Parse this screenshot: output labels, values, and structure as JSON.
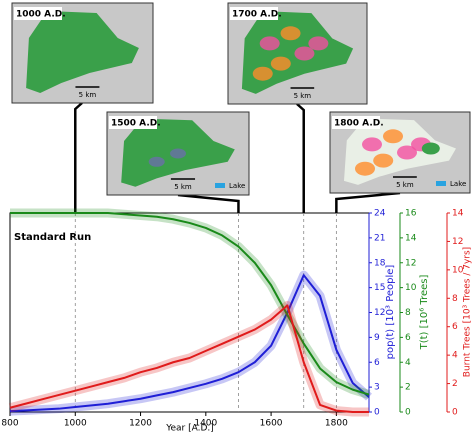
{
  "chart_data": {
    "type": "line",
    "title": "Standard Run",
    "xlabel": "Year [A.D.]",
    "ylabel": "pop(t) [10³ People]",
    "y2label": "T(t) [10⁶ Trees]",
    "y3label": "Burnt Trees [10³ Trees / 7yrs]",
    "xlim": [
      800,
      1900
    ],
    "xticks": [
      800,
      1000,
      1200,
      1400,
      1600,
      1800
    ],
    "ylim": [
      0,
      24
    ],
    "yticks": [
      0,
      3,
      6,
      9,
      12,
      15,
      18,
      21,
      24
    ],
    "y2lim": [
      0,
      16
    ],
    "y2ticks": [
      0,
      2,
      4,
      6,
      8,
      10,
      12,
      14,
      16
    ],
    "y3lim": [
      0,
      14
    ],
    "y3ticks": [
      0,
      2,
      4,
      6,
      8,
      10,
      12,
      14
    ],
    "vlines": [
      1000,
      1500,
      1700,
      1800
    ],
    "x": [
      800,
      850,
      900,
      950,
      1000,
      1050,
      1100,
      1150,
      1200,
      1250,
      1300,
      1350,
      1400,
      1450,
      1500,
      1550,
      1600,
      1650,
      1700,
      1750,
      1800,
      1850,
      1900
    ],
    "series": [
      {
        "name": "pop(t)",
        "color": "#1f1fd6",
        "axis": "y",
        "values": [
          0.1,
          0.2,
          0.3,
          0.4,
          0.6,
          0.8,
          1,
          1.3,
          1.6,
          2,
          2.4,
          2.9,
          3.4,
          4,
          4.8,
          6,
          8,
          12,
          16.5,
          14,
          7.5,
          3.5,
          1.8
        ]
      },
      {
        "name": "T(t)",
        "color": "#1a8a1a",
        "axis": "y2",
        "values": [
          16,
          16,
          16,
          16,
          16,
          16,
          16,
          15.9,
          15.8,
          15.7,
          15.5,
          15.2,
          14.8,
          14.2,
          13.3,
          12,
          10.2,
          7.8,
          5.5,
          3.5,
          2.4,
          1.8,
          1.4
        ]
      },
      {
        "name": "Burnt Trees",
        "color": "#e01b1b",
        "axis": "y3",
        "values": [
          0.3,
          0.6,
          0.9,
          1.2,
          1.5,
          1.8,
          2.1,
          2.4,
          2.8,
          3.1,
          3.5,
          3.8,
          4.3,
          4.8,
          5.3,
          5.8,
          6.5,
          7.5,
          3.5,
          0.5,
          0.1,
          0,
          0
        ]
      }
    ]
  },
  "insets": [
    {
      "label": "1000 A.D.",
      "scale_label": "5 km"
    },
    {
      "label": "1500 A.D.",
      "scale_label": "5 km",
      "legend": "Lake"
    },
    {
      "label": "1700 A.D.",
      "scale_label": "5 km"
    },
    {
      "label": "1800 A.D.",
      "scale_label": "5 km",
      "legend": "Lake"
    }
  ]
}
